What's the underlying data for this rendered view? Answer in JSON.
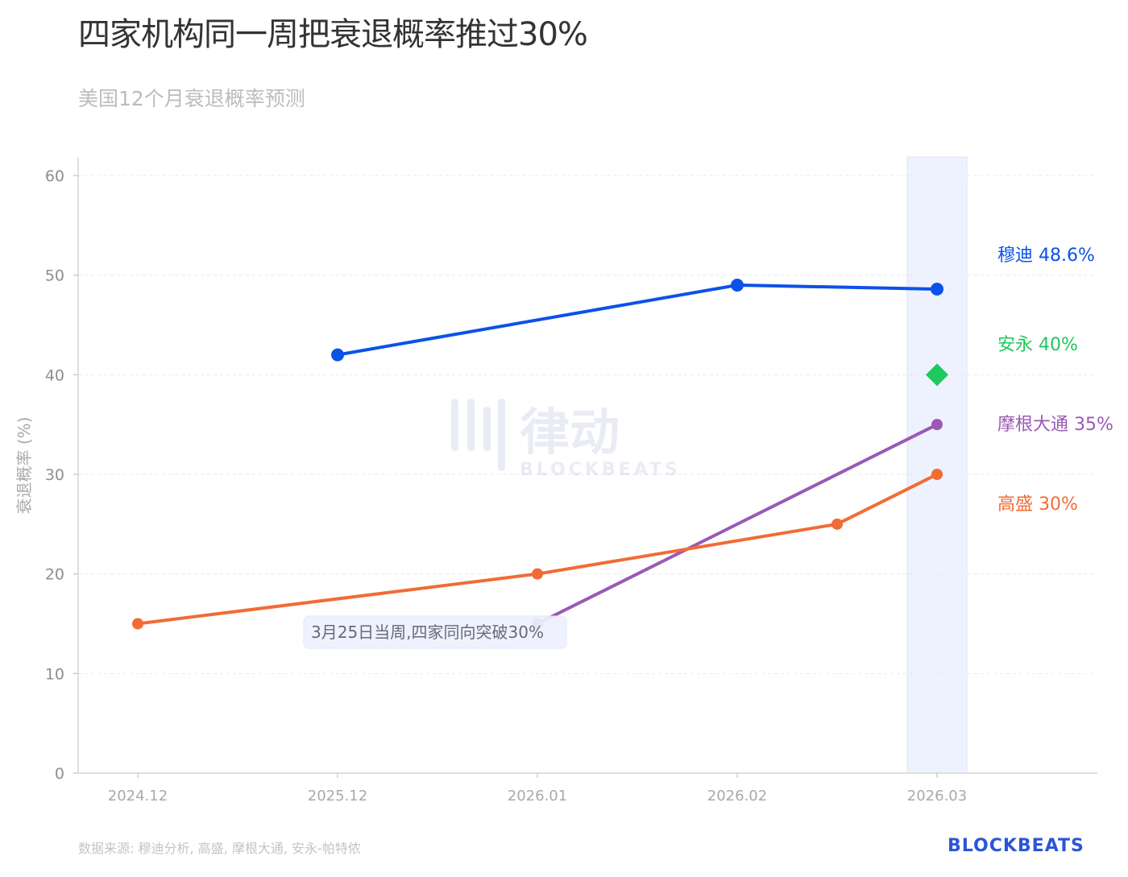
{
  "title": "四家机构同一周把衰退概率推过30%",
  "subtitle": "美国12个月衰退概率预测",
  "source": "数据来源: 穆迪分析, 高盛, 摩根大通, 安永-帕特侬",
  "brand": "BLOCKBEATS",
  "watermark": {
    "cn": "律动",
    "en": "BLOCKBEATS"
  },
  "chart_data": {
    "type": "line",
    "ylabel": "衰退概率 (%)",
    "ylim": [
      0,
      60
    ],
    "yticks": [
      0,
      10,
      20,
      30,
      40,
      50,
      60
    ],
    "x_labels": [
      "2024.12",
      "2025.12",
      "2026.01",
      "2026.02",
      "2026.03"
    ],
    "grid": "horizontal dashed",
    "highlight_band": {
      "around": "2026.03"
    },
    "annotation": {
      "text": "3月25日当周,四家同向突破30%",
      "x": "2026.01",
      "y": 14
    },
    "series": [
      {
        "name": "穆迪",
        "end_label": "穆迪 48.6%",
        "color": "#0b52e8",
        "marker": "circle",
        "points": [
          {
            "x": "2025.12",
            "y": 42
          },
          {
            "x": "2026.02",
            "y": 49
          },
          {
            "x": "2026.03",
            "y": 48.6
          }
        ]
      },
      {
        "name": "安永",
        "end_label": "安永 40%",
        "color": "#1ec95d",
        "marker": "diamond",
        "points": [
          {
            "x": "2026.03",
            "y": 40
          }
        ]
      },
      {
        "name": "摩根大通",
        "end_label": "摩根大通 35%",
        "color": "#9b59b6",
        "marker": "circle",
        "points": [
          {
            "x": "2026.01",
            "y": 15
          },
          {
            "x": "2026.03",
            "y": 35
          }
        ]
      },
      {
        "name": "高盛",
        "end_label": "高盛 30%",
        "color": "#f26b35",
        "marker": "circle",
        "points": [
          {
            "x": "2024.12",
            "y": 15
          },
          {
            "x": "2026.01",
            "y": 20
          },
          {
            "x": "2026.025",
            "y": 25
          },
          {
            "x": "2026.03",
            "y": 30
          }
        ]
      }
    ]
  }
}
